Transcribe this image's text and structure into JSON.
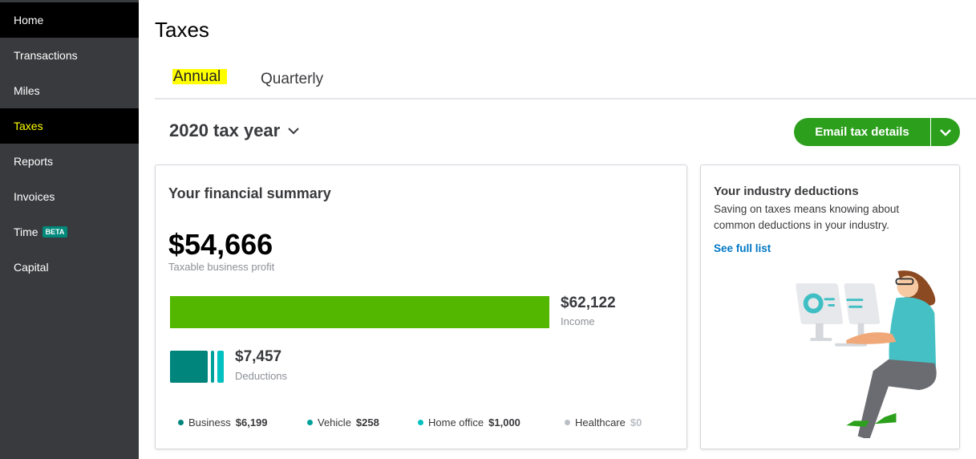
{
  "sidebar": {
    "items": [
      {
        "label": "Home",
        "badge": null
      },
      {
        "label": "Transactions"
      },
      {
        "label": "Miles"
      },
      {
        "label": "Taxes"
      },
      {
        "label": "Reports"
      },
      {
        "label": "Invoices"
      },
      {
        "label": "Time",
        "badge": "BETA"
      },
      {
        "label": "Capital"
      }
    ]
  },
  "header": {
    "title": "Taxes"
  },
  "tabs": [
    {
      "label": "Annual",
      "active": true
    },
    {
      "label": "Quarterly"
    }
  ],
  "tax_year": "2020 tax year",
  "email_button": "Email tax details",
  "summary": {
    "title": "Your financial summary",
    "profit": "$54,666",
    "profit_label": "Taxable business profit",
    "income": "$62,122",
    "income_label": "Income",
    "deductions": "$7,457",
    "deductions_label": "Deductions",
    "breakdown": [
      {
        "label": "Business",
        "value": "$6,199",
        "color": "#00857c"
      },
      {
        "label": "Vehicle",
        "value": "$258",
        "color": "#00a19a"
      },
      {
        "label": "Home office",
        "value": "$1,000",
        "color": "#00c1bf"
      },
      {
        "label": "Healthcare",
        "value": "$0",
        "color": "#babec5"
      }
    ]
  },
  "industry": {
    "title": "Your industry deductions",
    "text": "Saving on taxes means knowing about common deductions in your industry.",
    "link": "See full list"
  },
  "colors": {
    "income_bar": "#53b700",
    "button": "#2ca01c",
    "sidebar": "#393a3d"
  }
}
